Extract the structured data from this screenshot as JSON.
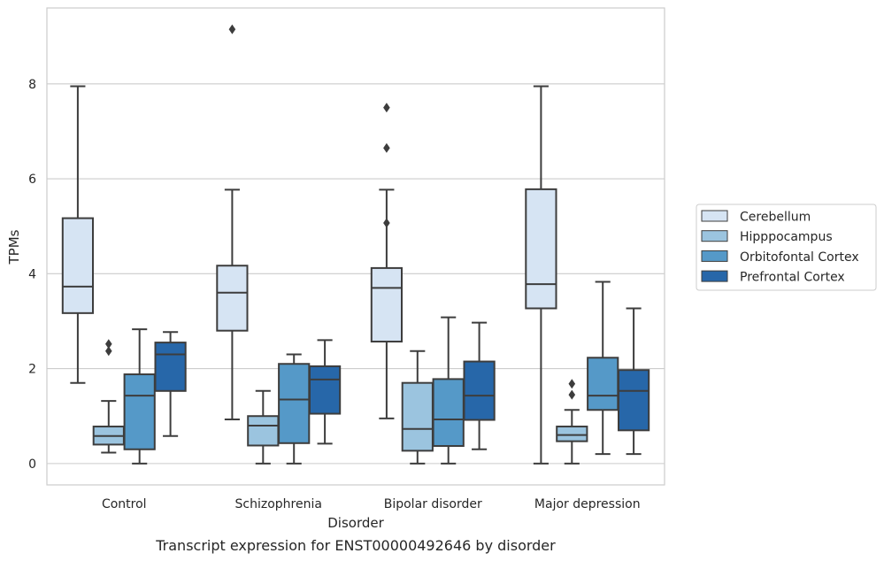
{
  "chart_data": {
    "type": "box",
    "title": "",
    "caption": "Transcript expression for ENST00000492646 by disorder",
    "xlabel": "Disorder",
    "ylabel": "TPMs",
    "ylim": [
      -0.45,
      9.6
    ],
    "yticks": [
      0,
      2,
      4,
      6,
      8
    ],
    "grid": "horizontal",
    "legend_position": "right",
    "categories": [
      "Control",
      "Schizophrenia",
      "Bipolar disorder",
      "Major depression"
    ],
    "series": [
      {
        "name": "Cerebellum",
        "color": "#d6e4f3",
        "boxes": [
          {
            "min": 1.7,
            "q1": 3.17,
            "median": 3.73,
            "q3": 5.17,
            "max": 7.95,
            "outliers": []
          },
          {
            "min": 0.93,
            "q1": 2.8,
            "median": 3.6,
            "q3": 4.17,
            "max": 5.77,
            "outliers": [
              9.15
            ]
          },
          {
            "min": 0.95,
            "q1": 2.57,
            "median": 3.7,
            "q3": 4.12,
            "max": 5.77,
            "outliers": [
              5.07,
              6.65,
              7.5
            ]
          },
          {
            "min": 0.0,
            "q1": 3.27,
            "median": 3.78,
            "q3": 5.78,
            "max": 7.95,
            "outliers": []
          }
        ]
      },
      {
        "name": "Hipppocampus",
        "color": "#9bc4df",
        "boxes": [
          {
            "min": 0.23,
            "q1": 0.4,
            "median": 0.58,
            "q3": 0.78,
            "max": 1.32,
            "outliers": [
              2.37,
              2.52
            ]
          },
          {
            "min": 0.0,
            "q1": 0.38,
            "median": 0.8,
            "q3": 1.0,
            "max": 1.53,
            "outliers": []
          },
          {
            "min": 0.0,
            "q1": 0.27,
            "median": 0.73,
            "q3": 1.7,
            "max": 2.37,
            "outliers": []
          },
          {
            "min": 0.0,
            "q1": 0.47,
            "median": 0.6,
            "q3": 0.78,
            "max": 1.13,
            "outliers": [
              1.45,
              1.68
            ]
          }
        ]
      },
      {
        "name": "Orbitofontal Cortex",
        "color": "#5599c8",
        "boxes": [
          {
            "min": 0.0,
            "q1": 0.3,
            "median": 1.43,
            "q3": 1.88,
            "max": 2.83,
            "outliers": []
          },
          {
            "min": 0.0,
            "q1": 0.43,
            "median": 1.35,
            "q3": 2.1,
            "max": 2.3,
            "outliers": []
          },
          {
            "min": 0.0,
            "q1": 0.37,
            "median": 0.93,
            "q3": 1.78,
            "max": 3.08,
            "outliers": []
          },
          {
            "min": 0.2,
            "q1": 1.13,
            "median": 1.43,
            "q3": 2.23,
            "max": 3.83,
            "outliers": []
          }
        ]
      },
      {
        "name": "Prefrontal Cortex",
        "color": "#2767a9",
        "boxes": [
          {
            "min": 0.58,
            "q1": 1.53,
            "median": 2.3,
            "q3": 2.55,
            "max": 2.77,
            "outliers": []
          },
          {
            "min": 0.42,
            "q1": 1.05,
            "median": 1.77,
            "q3": 2.05,
            "max": 2.6,
            "outliers": []
          },
          {
            "min": 0.3,
            "q1": 0.92,
            "median": 1.43,
            "q3": 2.15,
            "max": 2.97,
            "outliers": []
          },
          {
            "min": 0.2,
            "q1": 0.7,
            "median": 1.53,
            "q3": 1.97,
            "max": 3.27,
            "outliers": []
          }
        ]
      }
    ]
  }
}
